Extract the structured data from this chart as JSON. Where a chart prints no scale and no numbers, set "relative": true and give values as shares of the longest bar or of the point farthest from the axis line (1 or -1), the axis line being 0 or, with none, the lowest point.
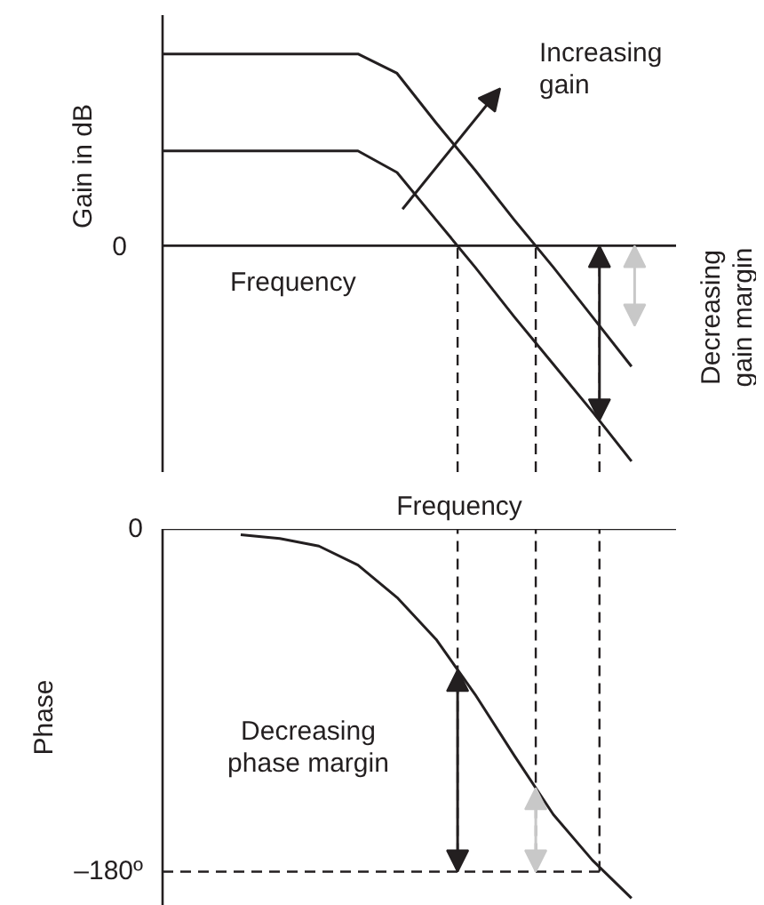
{
  "chart_data": [
    {
      "type": "line",
      "ylabel": "Gain in dB",
      "categories": [
        null,
        null,
        null,
        null,
        null,
        null,
        null,
        null,
        null,
        null,
        null,
        null,
        null,
        null
      ],
      "relative": true,
      "tick_labels": false,
      "series": [
        {
          "color": "#231f20",
          "values": [
            0.89,
            0.89,
            0.89,
            0.89,
            0.89,
            0.89,
            0.8,
            0.57,
            0.35,
            0.12,
            -0.1,
            -0.33,
            -0.56,
            null
          ]
        },
        {
          "color": "#231f20",
          "values": [
            0.44,
            0.44,
            0.44,
            0.44,
            0.44,
            0.44,
            0.34,
            0.12,
            -0.1,
            -0.33,
            -0.55,
            -0.77,
            -1.0,
            null
          ]
        }
      ],
      "ref_lines": [
        {
          "axis": "y",
          "value": 0,
          "label": "0",
          "line_style": "solid"
        }
      ],
      "annotations": [
        "Frequency",
        "Increasing gain",
        "Decreasing gain margin"
      ]
    },
    {
      "type": "line",
      "ylabel": "Phase",
      "xlabel": "Frequency",
      "categories": [
        null,
        null,
        null,
        null,
        null,
        null,
        null,
        null,
        null,
        null,
        null,
        null,
        null,
        null
      ],
      "tick_labels": "y",
      "ylim": [
        -198,
        0
      ],
      "yticks": [
        0,
        {
          "value": -180,
          "label": "–180º"
        }
      ],
      "series": [
        {
          "color": "#231f20",
          "values": [
            null,
            null,
            -3,
            -5,
            -9,
            -19,
            -36,
            -58,
            -87,
            -119,
            -150,
            -174,
            -194,
            null
          ]
        }
      ],
      "ref_lines": [
        {
          "axis": "y",
          "value": -180,
          "line_style": "dashed"
        }
      ],
      "annotations": [
        "Decreasing phase margin"
      ]
    }
  ]
}
